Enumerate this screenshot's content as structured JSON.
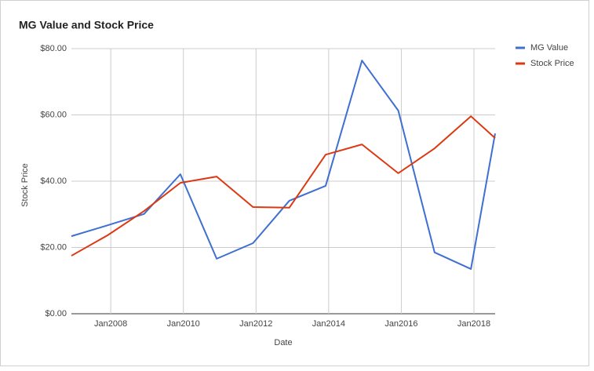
{
  "chart_data": {
    "type": "line",
    "title": "MG Value and Stock Price",
    "x_label": "Date",
    "y_label": "Stock Price",
    "x": [
      "2006-12",
      "2007-12",
      "2008-12",
      "2009-12",
      "2010-12",
      "2011-12",
      "2012-12",
      "2013-12",
      "2014-12",
      "2015-12",
      "2016-12",
      "2017-12",
      "2018-08"
    ],
    "series": [
      {
        "name": "MG Value",
        "color": "#3f6fd1",
        "values": [
          23.4,
          26.7,
          30.1,
          42.1,
          16.6,
          21.3,
          34.1,
          38.6,
          76.4,
          61.3,
          18.5,
          13.5,
          54.4
        ]
      },
      {
        "name": "Stock Price",
        "color": "#dc3912",
        "values": [
          17.5,
          23.7,
          31.0,
          39.5,
          41.4,
          32.2,
          32.0,
          48.0,
          51.1,
          42.4,
          49.9,
          59.6,
          53.0
        ]
      }
    ],
    "xlim": [
      "2006-12",
      "2018-08"
    ],
    "xticks": [
      {
        "value": "2008-01",
        "label": "Jan2008"
      },
      {
        "value": "2010-01",
        "label": "Jan2010"
      },
      {
        "value": "2012-01",
        "label": "Jan2012"
      },
      {
        "value": "2014-01",
        "label": "Jan2014"
      },
      {
        "value": "2016-01",
        "label": "Jan2016"
      },
      {
        "value": "2018-01",
        "label": "Jan2018"
      }
    ],
    "ylim": [
      0,
      80
    ],
    "yticks": [
      {
        "value": 0,
        "label": "$0.00"
      },
      {
        "value": 20,
        "label": "$20.00"
      },
      {
        "value": 40,
        "label": "$40.00"
      },
      {
        "value": 60,
        "label": "$60.00"
      },
      {
        "value": 80,
        "label": "$80.00"
      }
    ],
    "grid": true,
    "legend": "right"
  }
}
